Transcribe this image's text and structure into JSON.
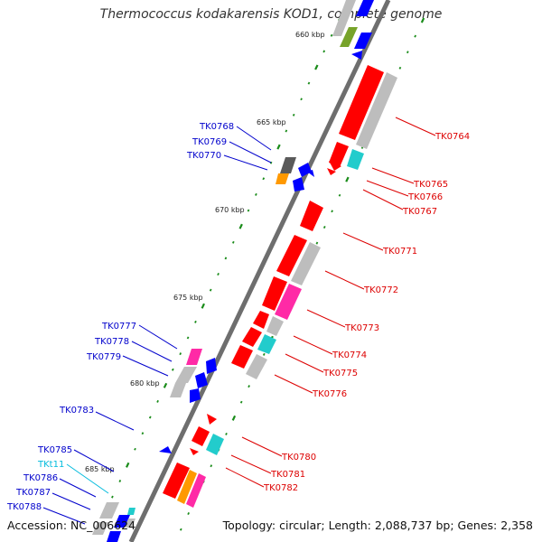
{
  "title": "Thermococcus kodakarensis KOD1, complete genome",
  "accession": "Accession: NC_006624",
  "topology": "Topology: circular; Length: 2,088,737 bp; Genes: 2,358",
  "colors": {
    "backbone": "#6e6e6e",
    "red": "#ff0000",
    "blue": "#0000ff",
    "gray": "#bdbdbd",
    "darkgray": "#5a5a5a",
    "cyan": "#22cccc",
    "magenta": "#ff2aa6",
    "orange": "#ff9900",
    "olive": "#77a32a",
    "tick": "#1a8c1a",
    "label_red": "#dd0000",
    "label_blue": "#0000cc",
    "label_cyan": "#00bbdd"
  },
  "scale_labels": [
    "660 kbp",
    "665 kbp",
    "670 kbp",
    "675 kbp",
    "680 kbp",
    "685 kbp"
  ],
  "genes": [
    {
      "name": "TK0764",
      "strand": "+"
    },
    {
      "name": "TK0765",
      "strand": "+"
    },
    {
      "name": "TK0766",
      "strand": "+"
    },
    {
      "name": "TK0767",
      "strand": "+"
    },
    {
      "name": "TK0768",
      "strand": "-"
    },
    {
      "name": "TK0769",
      "strand": "-"
    },
    {
      "name": "TK0770",
      "strand": "-"
    },
    {
      "name": "TK0771",
      "strand": "+"
    },
    {
      "name": "TK0772",
      "strand": "+"
    },
    {
      "name": "TK0773",
      "strand": "+"
    },
    {
      "name": "TK0774",
      "strand": "+"
    },
    {
      "name": "TK0775",
      "strand": "+"
    },
    {
      "name": "TK0776",
      "strand": "+"
    },
    {
      "name": "TK0777",
      "strand": "-"
    },
    {
      "name": "TK0778",
      "strand": "-"
    },
    {
      "name": "TK0779",
      "strand": "-"
    },
    {
      "name": "TK0780",
      "strand": "+"
    },
    {
      "name": "TK0781",
      "strand": "+"
    },
    {
      "name": "TK0782",
      "strand": "+"
    },
    {
      "name": "TK0783",
      "strand": "-"
    },
    {
      "name": "TK0785",
      "strand": "-"
    },
    {
      "name": "TKt11",
      "strand": "-"
    },
    {
      "name": "TK0786",
      "strand": "-"
    },
    {
      "name": "TK0787",
      "strand": "-"
    },
    {
      "name": "TK0788",
      "strand": "-"
    }
  ]
}
